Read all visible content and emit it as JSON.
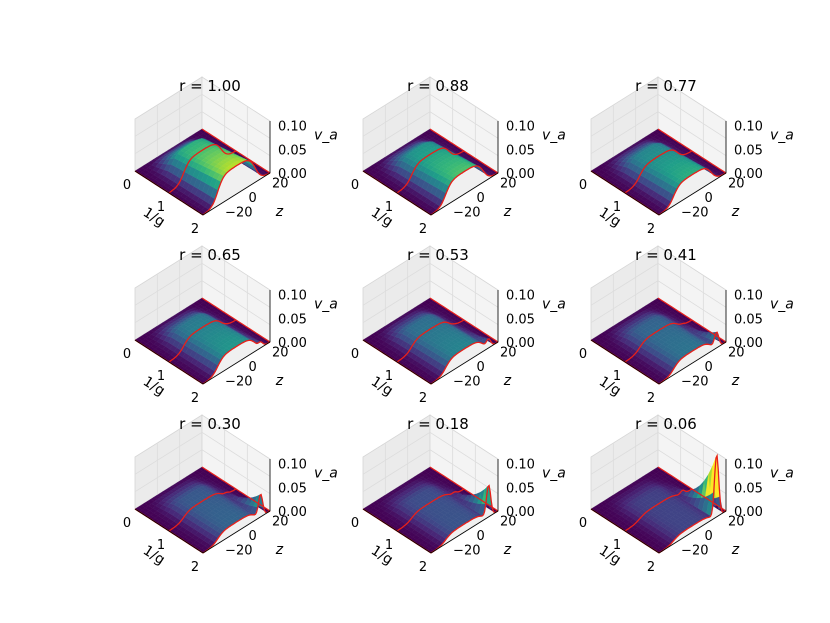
{
  "chart_data": {
    "type": "surface-3d-grid",
    "title": "",
    "axes": {
      "x_label": "1/g",
      "x_ticks": [
        "0",
        "1",
        "2"
      ],
      "x_range": [
        0,
        2
      ],
      "y_label": "z",
      "y_ticks": [
        "20",
        "0",
        "−20"
      ],
      "y_range": [
        -25,
        25
      ],
      "z_label": "v_a",
      "z_ticks": [
        "0.10",
        "0.05",
        "0.00"
      ],
      "z_range": [
        0,
        0.11
      ],
      "colormap": "viridis",
      "curve_color": "#e8201a",
      "grid": true
    },
    "panels": [
      {
        "title": "r = 1.00",
        "r": 1.0,
        "peak_va": 0.06,
        "spike_va": 0.0
      },
      {
        "title": "r = 0.88",
        "r": 0.88,
        "peak_va": 0.05,
        "spike_va": 0.0
      },
      {
        "title": "r = 0.77",
        "r": 0.77,
        "peak_va": 0.045,
        "spike_va": 0.0
      },
      {
        "title": "r = 0.65",
        "r": 0.65,
        "peak_va": 0.04,
        "spike_va": 0.008
      },
      {
        "title": "r = 0.53",
        "r": 0.53,
        "peak_va": 0.036,
        "spike_va": 0.015
      },
      {
        "title": "r = 0.41",
        "r": 0.41,
        "peak_va": 0.032,
        "spike_va": 0.03
      },
      {
        "title": "r = 0.30",
        "r": 0.3,
        "peak_va": 0.028,
        "spike_va": 0.045
      },
      {
        "title": "r = 0.18",
        "r": 0.18,
        "peak_va": 0.024,
        "spike_va": 0.065
      },
      {
        "title": "r = 0.06",
        "r": 0.06,
        "peak_va": 0.02,
        "spike_va": 0.13
      }
    ]
  }
}
